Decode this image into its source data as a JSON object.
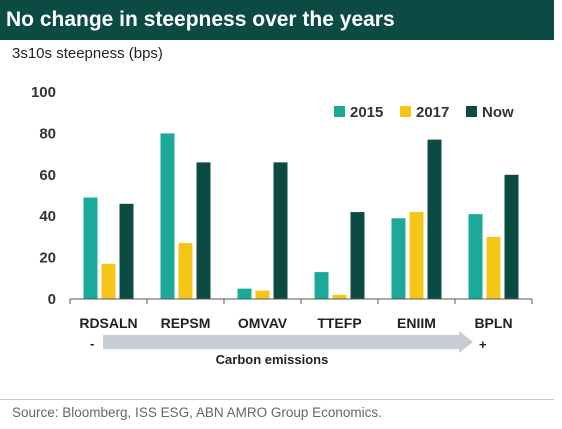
{
  "title": "No change in steepness over the years",
  "subtitle": "3s10s steepness (bps)",
  "source": "Source: Bloomberg, ISS ESG, ABN AMRO Group Economics.",
  "colors": {
    "title_bg": "#0b4b43",
    "2015": "#1ba99a",
    "2017": "#f5c518",
    "Now": "#0b4b43",
    "arrow": "#c7cdd4"
  },
  "arrow": {
    "label": "Carbon emissions",
    "minus_label": "-",
    "plus_label": "+"
  },
  "chart_data": {
    "type": "bar",
    "categories": [
      "RDSALN",
      "REPSM",
      "OMVAV",
      "TTEFP",
      "ENIIM",
      "BPLN"
    ],
    "series": [
      {
        "name": "2015",
        "values": [
          49,
          80,
          5,
          13,
          39,
          41
        ]
      },
      {
        "name": "2017",
        "values": [
          17,
          27,
          4,
          2,
          42,
          30
        ]
      },
      {
        "name": "Now",
        "values": [
          46,
          66,
          66,
          42,
          77,
          60
        ]
      }
    ],
    "ylim": [
      0,
      100
    ],
    "yticks": [
      "0",
      "20",
      "40",
      "60",
      "80",
      "100"
    ],
    "legend": "top-right",
    "grid": false
  }
}
